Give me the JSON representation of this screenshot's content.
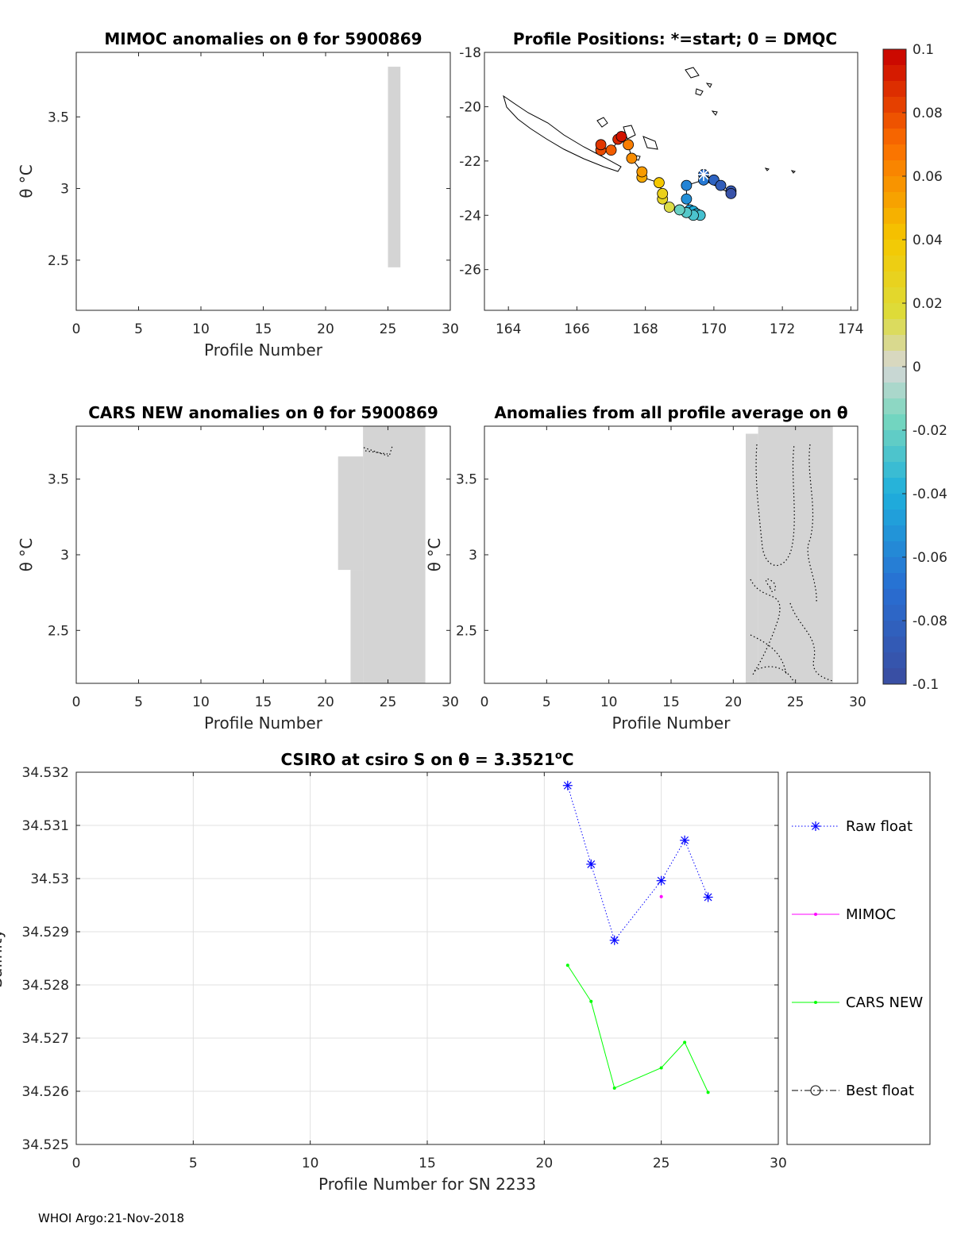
{
  "footer": "WHOI Argo:21-Nov-2018",
  "chart_data": [
    {
      "id": "mimoc",
      "type": "heatmap",
      "title": "MIMOC anomalies on θ  for 5900869",
      "xlabel": "Profile Number",
      "ylabel": "θ °C",
      "xlim": [
        0,
        30
      ],
      "ylim": [
        2.15,
        3.95
      ],
      "xticks": [
        0,
        5,
        10,
        15,
        20,
        25,
        30
      ],
      "yticks": [
        2.5,
        3,
        3.5
      ],
      "cells": [
        {
          "x0": 25,
          "x1": 26,
          "y0": 2.45,
          "y1": 3.85,
          "value": 0
        }
      ]
    },
    {
      "id": "positions",
      "type": "scatter",
      "title": "Profile Positions: *=start; 0 = DMQC",
      "xlim": [
        163.3,
        174.2
      ],
      "ylim": [
        -27.5,
        -18
      ],
      "xticks": [
        164,
        166,
        168,
        170,
        172,
        174
      ],
      "yticks": [
        -18,
        -20,
        -22,
        -24,
        -26
      ],
      "start": {
        "lon": 169.7,
        "lat": -22.5
      },
      "track": [
        {
          "lon": 169.7,
          "lat": -22.5,
          "v": -0.07
        },
        {
          "lon": 170.0,
          "lat": -22.7,
          "v": -0.08
        },
        {
          "lon": 170.2,
          "lat": -22.9,
          "v": -0.085
        },
        {
          "lon": 170.5,
          "lat": -23.1,
          "v": -0.09
        },
        {
          "lon": 170.5,
          "lat": -23.2,
          "v": -0.095
        },
        {
          "lon": 169.7,
          "lat": -22.7,
          "v": -0.065
        },
        {
          "lon": 169.2,
          "lat": -22.9,
          "v": -0.06
        },
        {
          "lon": 169.2,
          "lat": -23.4,
          "v": -0.055
        },
        {
          "lon": 169.3,
          "lat": -23.8,
          "v": -0.045
        },
        {
          "lon": 169.4,
          "lat": -23.85,
          "v": -0.04
        },
        {
          "lon": 169.5,
          "lat": -23.95,
          "v": -0.035
        },
        {
          "lon": 169.6,
          "lat": -24.0,
          "v": -0.03
        },
        {
          "lon": 169.4,
          "lat": -24.0,
          "v": -0.028
        },
        {
          "lon": 169.2,
          "lat": -23.9,
          "v": -0.025
        },
        {
          "lon": 169.0,
          "lat": -23.8,
          "v": -0.02
        },
        {
          "lon": 168.7,
          "lat": -23.7,
          "v": 0.015
        },
        {
          "lon": 168.5,
          "lat": -23.4,
          "v": 0.025
        },
        {
          "lon": 168.5,
          "lat": -23.2,
          "v": 0.03
        },
        {
          "lon": 168.4,
          "lat": -22.8,
          "v": 0.04
        },
        {
          "lon": 167.9,
          "lat": -22.6,
          "v": 0.05
        },
        {
          "lon": 167.9,
          "lat": -22.4,
          "v": 0.055
        },
        {
          "lon": 167.6,
          "lat": -21.9,
          "v": 0.06
        },
        {
          "lon": 167.5,
          "lat": -21.4,
          "v": 0.065
        },
        {
          "lon": 167.2,
          "lat": -21.2,
          "v": 0.09
        },
        {
          "lon": 167.3,
          "lat": -21.1,
          "v": 0.095
        },
        {
          "lon": 167.0,
          "lat": -21.6,
          "v": 0.075
        },
        {
          "lon": 166.7,
          "lat": -21.6,
          "v": 0.08
        },
        {
          "lon": 166.7,
          "lat": -21.4,
          "v": 0.085
        }
      ]
    },
    {
      "id": "colorbar",
      "type": "heatmap",
      "clim": [
        -0.1,
        0.1
      ],
      "ticks": [
        "0.1",
        "0.08",
        "0.06",
        "0.04",
        "0.02",
        "0",
        "-0.02",
        "-0.04",
        "-0.06",
        "-0.08",
        "-0.1"
      ]
    },
    {
      "id": "cars",
      "type": "heatmap",
      "title": "CARS NEW anomalies on θ for 5900869",
      "xlabel": "Profile Number",
      "ylabel": "θ °C",
      "xlim": [
        0,
        30
      ],
      "ylim": [
        2.15,
        3.85
      ],
      "xticks": [
        0,
        5,
        10,
        15,
        20,
        25,
        30
      ],
      "yticks": [
        2.5,
        3,
        3.5
      ],
      "cells": [
        {
          "x0": 21,
          "x1": 23,
          "y0": 2.9,
          "y1": 3.65,
          "value": 0
        },
        {
          "x0": 22,
          "x1": 23,
          "y0": 2.15,
          "y1": 2.9,
          "value": 0
        },
        {
          "x0": 23,
          "x1": 28,
          "y0": 2.15,
          "y1": 3.85,
          "value": 0
        }
      ]
    },
    {
      "id": "avg",
      "type": "heatmap",
      "title": "Anomalies from all profile average on θ",
      "xlabel": "Profile Number",
      "ylabel": "θ °C",
      "xlim": [
        0,
        30
      ],
      "ylim": [
        2.15,
        3.85
      ],
      "xticks": [
        0,
        5,
        10,
        15,
        20,
        25,
        30
      ],
      "yticks": [
        2.5,
        3,
        3.5
      ],
      "cells": [
        {
          "x0": 21,
          "x1": 22,
          "y0": 2.15,
          "y1": 3.8,
          "value": 0
        },
        {
          "x0": 22,
          "x1": 28,
          "y0": 2.15,
          "y1": 3.85,
          "value": 0
        }
      ]
    },
    {
      "id": "salinity",
      "type": "line",
      "title_main": "CSIRO at csiro S on θ = 3.3521",
      "title_sup": "o",
      "title_end": "C",
      "xlabel": "Profile Number for SN 2233",
      "ylabel": "Salinity",
      "xlim": [
        0,
        30
      ],
      "ylim": [
        34.525,
        34.532
      ],
      "grid": true,
      "xticks": [
        0,
        5,
        10,
        15,
        20,
        25,
        30
      ],
      "yticks": [
        "34.525",
        "34.526",
        "34.527",
        "34.528",
        "34.529",
        "34.53",
        "34.531",
        "34.532"
      ],
      "series": [
        {
          "name": "Raw float",
          "color": "#0000ff",
          "style": "dotted-star",
          "x": [
            21,
            22,
            23,
            25,
            26,
            27
          ],
          "y": [
            34.53175,
            34.53027,
            34.52884,
            34.52996,
            34.53072,
            34.52965
          ]
        },
        {
          "name": "MIMOC",
          "color": "#ff00ff",
          "style": "solid-dot",
          "x": [
            25
          ],
          "y": [
            34.52966
          ]
        },
        {
          "name": "CARS NEW",
          "color": "#00ff00",
          "style": "solid-dot",
          "x": [
            21,
            22,
            23,
            25,
            26,
            27
          ],
          "y": [
            34.52837,
            34.52769,
            34.52606,
            34.52644,
            34.52692,
            34.52598
          ]
        },
        {
          "name": "Best float",
          "color": "#000000",
          "style": "dashdot-circle",
          "x": [],
          "y": []
        }
      ],
      "legend_position": "outside-right"
    }
  ]
}
